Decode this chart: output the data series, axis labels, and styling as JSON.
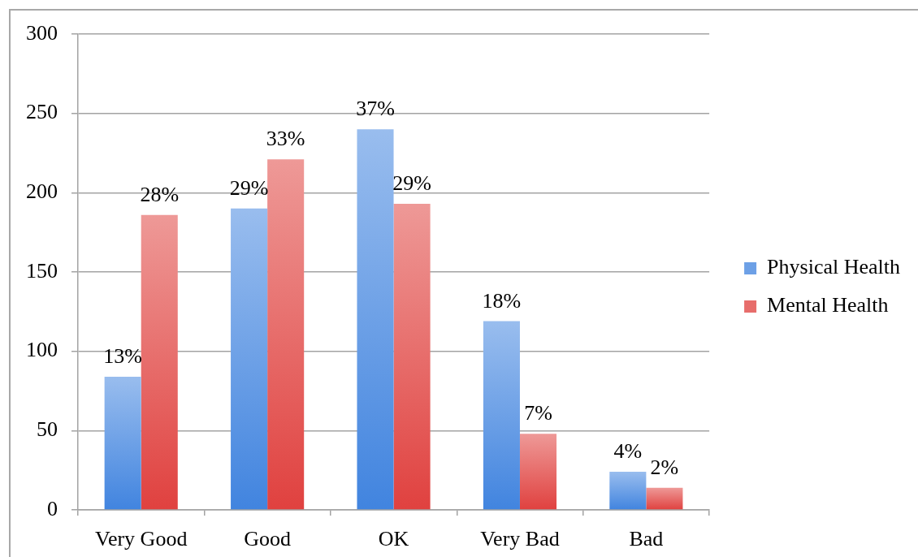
{
  "chart_data": {
    "type": "bar",
    "categories": [
      "Very Good",
      "Good",
      "OK",
      "Very Bad",
      "Bad"
    ],
    "series": [
      {
        "name": "Physical Health",
        "color": "#6da0e6",
        "values": [
          84,
          190,
          240,
          119,
          24
        ]
      },
      {
        "name": "Mental Health",
        "color": "#e76d6b",
        "values": [
          186,
          221,
          193,
          48,
          14
        ]
      }
    ],
    "ylim": [
      0,
      300
    ],
    "yticks": [
      0,
      50,
      100,
      150,
      200,
      250,
      300
    ],
    "grid": "y",
    "legend": "right",
    "annotations": [
      {
        "text": "13%",
        "x": "Very Good",
        "y": 84
      },
      {
        "text": "29%",
        "x": "Good",
        "y": 190
      },
      {
        "text": "37%",
        "x": "OK",
        "y": 240
      },
      {
        "text": "18%",
        "x": "Very Bad",
        "y": 119
      },
      {
        "text": "4%",
        "x": "Bad",
        "y": 24
      },
      {
        "text": "28%",
        "x": "Very Good",
        "y": 186
      },
      {
        "text": "33%",
        "x": "Good",
        "y": 221
      },
      {
        "text": "29%",
        "x": "OK",
        "y": 193
      },
      {
        "text": "7%",
        "x": "Very Bad",
        "y": 48
      },
      {
        "text": "2%",
        "x": "Bad",
        "y": 14
      }
    ]
  }
}
